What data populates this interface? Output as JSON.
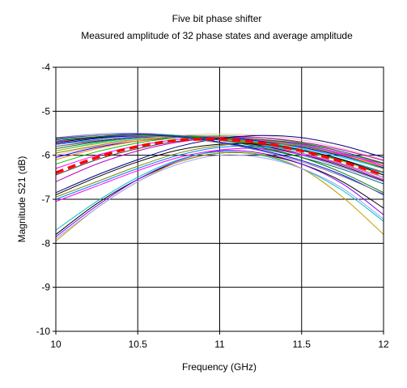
{
  "chart_data": {
    "type": "line",
    "title": "Five bit phase shifter",
    "subtitle": "Measured amplitude of 32 phase states and average amplitude",
    "xlabel": "Frequency (GHz)",
    "ylabel": "Magnitude S21 (dB)",
    "xlim": [
      10,
      12
    ],
    "ylim": [
      -10,
      -4
    ],
    "x_ticks": [
      "10",
      "10.5",
      "11",
      "11.5",
      "12"
    ],
    "y_ticks": [
      "-4",
      "-5",
      "-6",
      "-7",
      "-8",
      "-9",
      "-10"
    ],
    "grid": true,
    "legend": "none",
    "x": [
      10,
      10.25,
      10.5,
      10.75,
      11,
      11.25,
      11.5,
      11.75,
      12
    ],
    "series": [
      {
        "values": [
          -5.62,
          -5.55,
          -5.52,
          -5.55,
          -5.62,
          -5.72,
          -5.85,
          -6.05,
          -6.3
        ],
        "color": "#000080"
      },
      {
        "values": [
          -5.7,
          -5.6,
          -5.55,
          -5.55,
          -5.6,
          -5.68,
          -5.8,
          -5.98,
          -6.2
        ],
        "color": "#ff00ff"
      },
      {
        "values": [
          -5.75,
          -5.65,
          -5.58,
          -5.55,
          -5.58,
          -5.65,
          -5.78,
          -5.95,
          -6.18
        ],
        "color": "#00a0a0"
      },
      {
        "values": [
          -5.8,
          -5.68,
          -5.6,
          -5.58,
          -5.6,
          -5.7,
          -5.85,
          -6.05,
          -6.3
        ],
        "color": "#800080"
      },
      {
        "values": [
          -5.85,
          -5.7,
          -5.62,
          -5.6,
          -5.62,
          -5.72,
          -5.9,
          -6.12,
          -6.4
        ],
        "color": "#008000"
      },
      {
        "values": [
          -5.9,
          -5.72,
          -5.62,
          -5.58,
          -5.6,
          -5.7,
          -5.85,
          -6.05,
          -6.3
        ],
        "color": "#00ffff"
      },
      {
        "values": [
          -5.95,
          -5.78,
          -5.65,
          -5.6,
          -5.62,
          -5.72,
          -5.88,
          -6.1,
          -6.38
        ],
        "color": "#808000"
      },
      {
        "values": [
          -6.0,
          -5.8,
          -5.65,
          -5.55,
          -5.52,
          -5.55,
          -5.65,
          -5.85,
          -6.1
        ],
        "color": "#ffb0b0"
      },
      {
        "values": [
          -6.05,
          -5.82,
          -5.68,
          -5.6,
          -5.6,
          -5.68,
          -5.82,
          -6.02,
          -6.28
        ],
        "color": "#0000ff"
      },
      {
        "values": [
          -6.1,
          -5.85,
          -5.68,
          -5.58,
          -5.58,
          -5.66,
          -5.8,
          -6.0,
          -6.25
        ],
        "color": "#ff8000"
      },
      {
        "values": [
          -5.72,
          -5.6,
          -5.55,
          -5.56,
          -5.64,
          -5.78,
          -5.98,
          -6.25,
          -6.58
        ],
        "color": "#000000"
      },
      {
        "values": [
          -5.65,
          -5.58,
          -5.56,
          -5.6,
          -5.7,
          -5.85,
          -6.05,
          -6.32,
          -6.65
        ],
        "color": "#006060"
      },
      {
        "values": [
          -5.6,
          -5.52,
          -5.5,
          -5.55,
          -5.65,
          -5.8,
          -6.0,
          -6.28,
          -6.6
        ],
        "color": "#8080ff"
      },
      {
        "values": [
          -5.8,
          -5.66,
          -5.58,
          -5.58,
          -5.64,
          -5.76,
          -5.95,
          -6.2,
          -6.5
        ],
        "color": "#808080"
      },
      {
        "values": [
          -5.9,
          -5.74,
          -5.64,
          -5.6,
          -5.64,
          -5.74,
          -5.9,
          -6.14,
          -6.45
        ],
        "color": "#c0a000"
      },
      {
        "values": [
          -6.2,
          -5.92,
          -5.72,
          -5.6,
          -5.56,
          -5.6,
          -5.72,
          -5.92,
          -6.2
        ],
        "color": "#00c000"
      },
      {
        "values": [
          -6.3,
          -6.0,
          -5.78,
          -5.64,
          -5.6,
          -5.64,
          -5.76,
          -5.96,
          -6.24
        ],
        "color": "#ff00ff"
      },
      {
        "values": [
          -6.45,
          -6.1,
          -5.85,
          -5.68,
          -5.62,
          -5.64,
          -5.74,
          -5.92,
          -6.18
        ],
        "color": "#404040"
      },
      {
        "values": [
          -6.6,
          -6.2,
          -5.9,
          -5.7,
          -5.6,
          -5.6,
          -5.7,
          -5.88,
          -6.12
        ],
        "color": "#c000c0"
      },
      {
        "values": [
          -6.85,
          -6.45,
          -6.1,
          -5.8,
          -5.62,
          -5.55,
          -5.6,
          -5.78,
          -6.05
        ],
        "color": "#000080"
      },
      {
        "values": [
          -6.95,
          -6.6,
          -6.25,
          -5.95,
          -5.78,
          -5.72,
          -5.8,
          -6.0,
          -6.3
        ],
        "color": "#808000"
      },
      {
        "values": [
          -7.0,
          -6.65,
          -6.3,
          -6.0,
          -5.82,
          -5.8,
          -5.9,
          -6.1,
          -6.4
        ],
        "color": "#0080ff"
      },
      {
        "values": [
          -6.9,
          -6.5,
          -6.15,
          -5.88,
          -5.75,
          -5.75,
          -5.88,
          -6.1,
          -6.45
        ],
        "color": "#000000"
      },
      {
        "values": [
          -7.05,
          -6.7,
          -6.35,
          -6.05,
          -5.88,
          -5.85,
          -5.98,
          -6.22,
          -6.55
        ],
        "color": "#ff00ff"
      },
      {
        "values": [
          -7.8,
          -7.1,
          -6.55,
          -6.15,
          -5.95,
          -5.98,
          -6.2,
          -6.6,
          -7.2
        ],
        "color": "#000000"
      },
      {
        "values": [
          -7.85,
          -7.15,
          -6.55,
          -6.12,
          -5.9,
          -5.95,
          -6.2,
          -6.65,
          -7.35
        ],
        "color": "#8000ff"
      },
      {
        "values": [
          -7.7,
          -7.05,
          -6.5,
          -6.1,
          -5.92,
          -6.0,
          -6.3,
          -6.8,
          -7.5
        ],
        "color": "#00c0c0"
      },
      {
        "values": [
          -7.95,
          -7.2,
          -6.6,
          -6.15,
          -5.95,
          -5.98,
          -6.3,
          -6.95,
          -7.8
        ],
        "color": "#c0a000"
      },
      {
        "values": [
          -7.9,
          -7.2,
          -6.6,
          -6.2,
          -6.0,
          -6.05,
          -6.3,
          -6.75,
          -7.45
        ],
        "color": "#a0a0ff"
      },
      {
        "values": [
          -5.68,
          -5.58,
          -5.54,
          -5.56,
          -5.66,
          -5.82,
          -6.05,
          -6.4,
          -6.85
        ],
        "color": "#008000"
      },
      {
        "values": [
          -5.75,
          -5.62,
          -5.56,
          -5.58,
          -5.7,
          -5.88,
          -6.12,
          -6.45,
          -6.9
        ],
        "color": "#0000ff"
      },
      {
        "values": [
          -5.6,
          -5.55,
          -5.55,
          -5.6,
          -5.72,
          -5.9,
          -6.15,
          -6.48,
          -6.88
        ],
        "color": "#808080"
      },
      {
        "values": [
          -6.4,
          -6.05,
          -5.8,
          -5.66,
          -5.64,
          -5.72,
          -5.9,
          -6.15,
          -6.45
        ],
        "color": "#ff0000",
        "dashed": true
      }
    ]
  }
}
